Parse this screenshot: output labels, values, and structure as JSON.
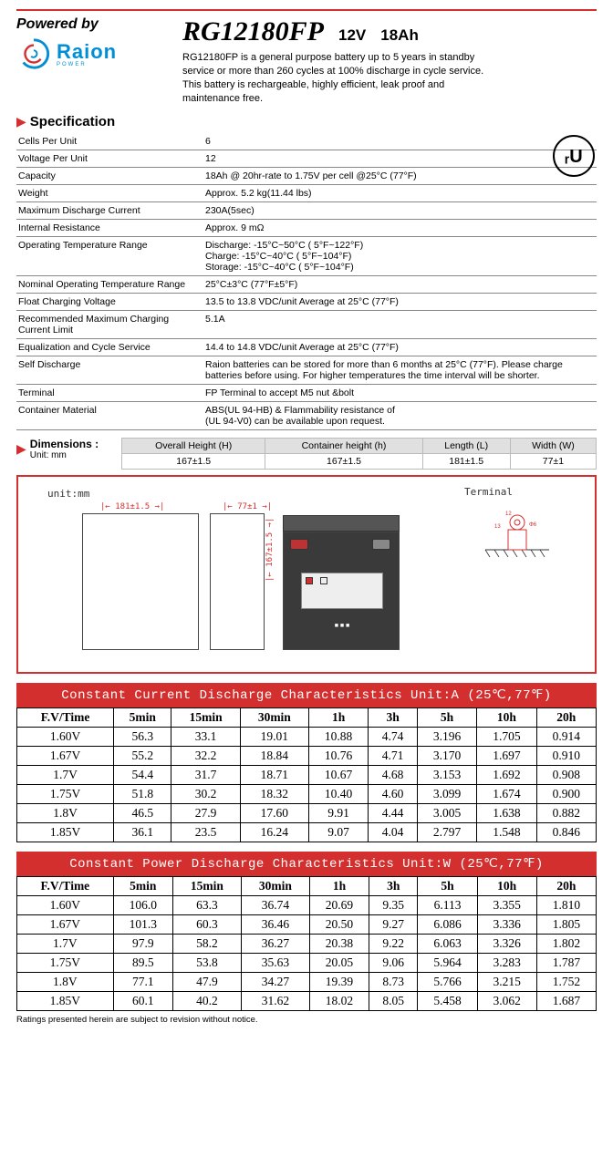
{
  "header": {
    "powered_by": "Powered by",
    "brand": "Raion",
    "brand_sub": "POWER",
    "model": "RG12180FP",
    "voltage": "12V",
    "capacity_label": "18Ah",
    "description": "RG12180FP is a general purpose battery up to 5 years in standby service or more than 260 cycles at 100% discharge in cycle service. This battery is rechargeable, highly efficient, leak proof and maintenance free."
  },
  "spec": {
    "title": "Specification",
    "rows": [
      {
        "k": "Cells Per Unit",
        "v": "6"
      },
      {
        "k": "Voltage Per Unit",
        "v": "12"
      },
      {
        "k": "Capacity",
        "v": "18Ah @ 20hr-rate to 1.75V per cell @25°C (77°F)"
      },
      {
        "k": "Weight",
        "v": "Approx. 5.2 kg(11.44 lbs)"
      },
      {
        "k": "Maximum Discharge Current",
        "v": "230A(5sec)"
      },
      {
        "k": "Internal Resistance",
        "v": "Approx. 9 mΩ"
      },
      {
        "k": "Operating Temperature Range",
        "v": "Discharge: -15°C~50°C ( 5°F~122°F)\nCharge: -15°C~40°C ( 5°F~104°F)\nStorage: -15°C~40°C ( 5°F~104°F)"
      },
      {
        "k": "Nominal Operating Temperature Range",
        "v": "25°C±3°C (77°F±5°F)"
      },
      {
        "k": "Float Charging Voltage",
        "v": "13.5 to 13.8 VDC/unit Average at  25°C (77°F)"
      },
      {
        "k": "Recommended Maximum Charging Current Limit",
        "v": "5.1A"
      },
      {
        "k": "Equalization and Cycle Service",
        "v": "14.4 to 14.8 VDC/unit Average at  25°C (77°F)"
      },
      {
        "k": "Self Discharge",
        "v": "Raion batteries can be stored for more than 6 months at 25°C (77°F). Please charge batteries before using.  For higher temperatures the time interval will be shorter."
      },
      {
        "k": "Terminal",
        "v": "FP Terminal to accept M5 nut &bolt"
      },
      {
        "k": "Container Material",
        "v": "ABS(UL 94-HB) &  Flammability resistance of\n(UL 94-V0) can be available upon request."
      }
    ]
  },
  "dimensions": {
    "title": "Dimensions :",
    "unit_label": "Unit: mm",
    "columns": [
      "Overall Height (H)",
      "Container height (h)",
      "Length (L)",
      "Width (W)"
    ],
    "values": [
      "167±1.5",
      "167±1.5",
      "181±1.5",
      "77±1"
    ],
    "diagram_unit": "unit:mm",
    "terminal_label": "Terminal",
    "dims": {
      "length": "181±1.5",
      "width": "77±1",
      "height": "167±1.5"
    }
  },
  "current_table": {
    "title": "Constant Current Discharge Characteristics   Unit:A (25℃,77℉)",
    "columns": [
      "F.V/Time",
      "5min",
      "15min",
      "30min",
      "1h",
      "3h",
      "5h",
      "10h",
      "20h"
    ],
    "rows": [
      [
        "1.60V",
        "56.3",
        "33.1",
        "19.01",
        "10.88",
        "4.74",
        "3.196",
        "1.705",
        "0.914"
      ],
      [
        "1.67V",
        "55.2",
        "32.2",
        "18.84",
        "10.76",
        "4.71",
        "3.170",
        "1.697",
        "0.910"
      ],
      [
        "1.7V",
        "54.4",
        "31.7",
        "18.71",
        "10.67",
        "4.68",
        "3.153",
        "1.692",
        "0.908"
      ],
      [
        "1.75V",
        "51.8",
        "30.2",
        "18.32",
        "10.40",
        "4.60",
        "3.099",
        "1.674",
        "0.900"
      ],
      [
        "1.8V",
        "46.5",
        "27.9",
        "17.60",
        "9.91",
        "4.44",
        "3.005",
        "1.638",
        "0.882"
      ],
      [
        "1.85V",
        "36.1",
        "23.5",
        "16.24",
        "9.07",
        "4.04",
        "2.797",
        "1.548",
        "0.846"
      ]
    ]
  },
  "power_table": {
    "title": "Constant Power Discharge Characteristics   Unit:W (25℃,77℉)",
    "columns": [
      "F.V/Time",
      "5min",
      "15min",
      "30min",
      "1h",
      "3h",
      "5h",
      "10h",
      "20h"
    ],
    "rows": [
      [
        "1.60V",
        "106.0",
        "63.3",
        "36.74",
        "20.69",
        "9.35",
        "6.113",
        "3.355",
        "1.810"
      ],
      [
        "1.67V",
        "101.3",
        "60.3",
        "36.46",
        "20.50",
        "9.27",
        "6.086",
        "3.336",
        "1.805"
      ],
      [
        "1.7V",
        "97.9",
        "58.2",
        "36.27",
        "20.38",
        "9.22",
        "6.063",
        "3.326",
        "1.802"
      ],
      [
        "1.75V",
        "89.5",
        "53.8",
        "35.63",
        "20.05",
        "9.06",
        "5.964",
        "3.283",
        "1.787"
      ],
      [
        "1.8V",
        "77.1",
        "47.9",
        "34.27",
        "19.39",
        "8.73",
        "5.766",
        "3.215",
        "1.752"
      ],
      [
        "1.85V",
        "60.1",
        "40.2",
        "31.62",
        "18.02",
        "8.05",
        "5.458",
        "3.062",
        "1.687"
      ]
    ]
  },
  "footnote": "Ratings presented herein are subject to revision without notice.",
  "colors": {
    "accent_red": "#d32f2f",
    "brand_blue": "#008fd5",
    "header_gray": "#e0e0e0"
  }
}
